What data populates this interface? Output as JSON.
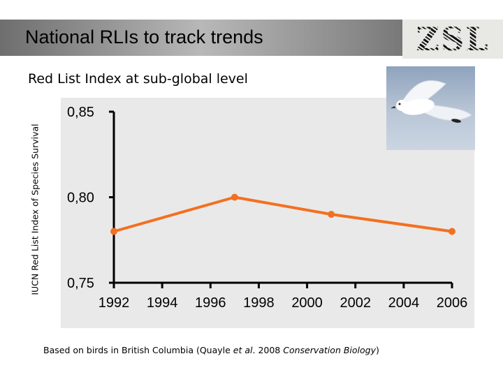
{
  "header": {
    "title": "National RLIs to track trends",
    "logo_text": "ZSL"
  },
  "subtitle": "Red List Index at sub-global level",
  "footnote": {
    "prefix": "Based on birds in British Columbia (Quayle ",
    "etal": "et al",
    "middle": ". 2008 ",
    "journal": "Conservation Biology",
    "suffix": ")"
  },
  "photo": {
    "subject": "white seabird in flight"
  },
  "colors": {
    "series": "#f37021",
    "plot_bg": "#e9e9e9"
  },
  "chart_data": {
    "type": "line",
    "title": "",
    "xlabel": "",
    "ylabel": "IUCN Red List Index of Species Survival",
    "xlim": [
      1992,
      2006
    ],
    "ylim": [
      0.75,
      0.85
    ],
    "x_ticks": [
      1992,
      1994,
      1996,
      1998,
      2000,
      2002,
      2004,
      2006
    ],
    "x_tick_labels": [
      "1992",
      "1994",
      "1996",
      "1998",
      "2000",
      "2002",
      "2004",
      "2006"
    ],
    "y_ticks": [
      0.75,
      0.8,
      0.85
    ],
    "y_tick_labels": [
      "0,75",
      "0,80",
      "0,85"
    ],
    "grid": false,
    "series": [
      {
        "x": [
          1992,
          1997,
          2001,
          2006
        ],
        "values": [
          0.78,
          0.8,
          0.79,
          0.78
        ]
      }
    ]
  }
}
